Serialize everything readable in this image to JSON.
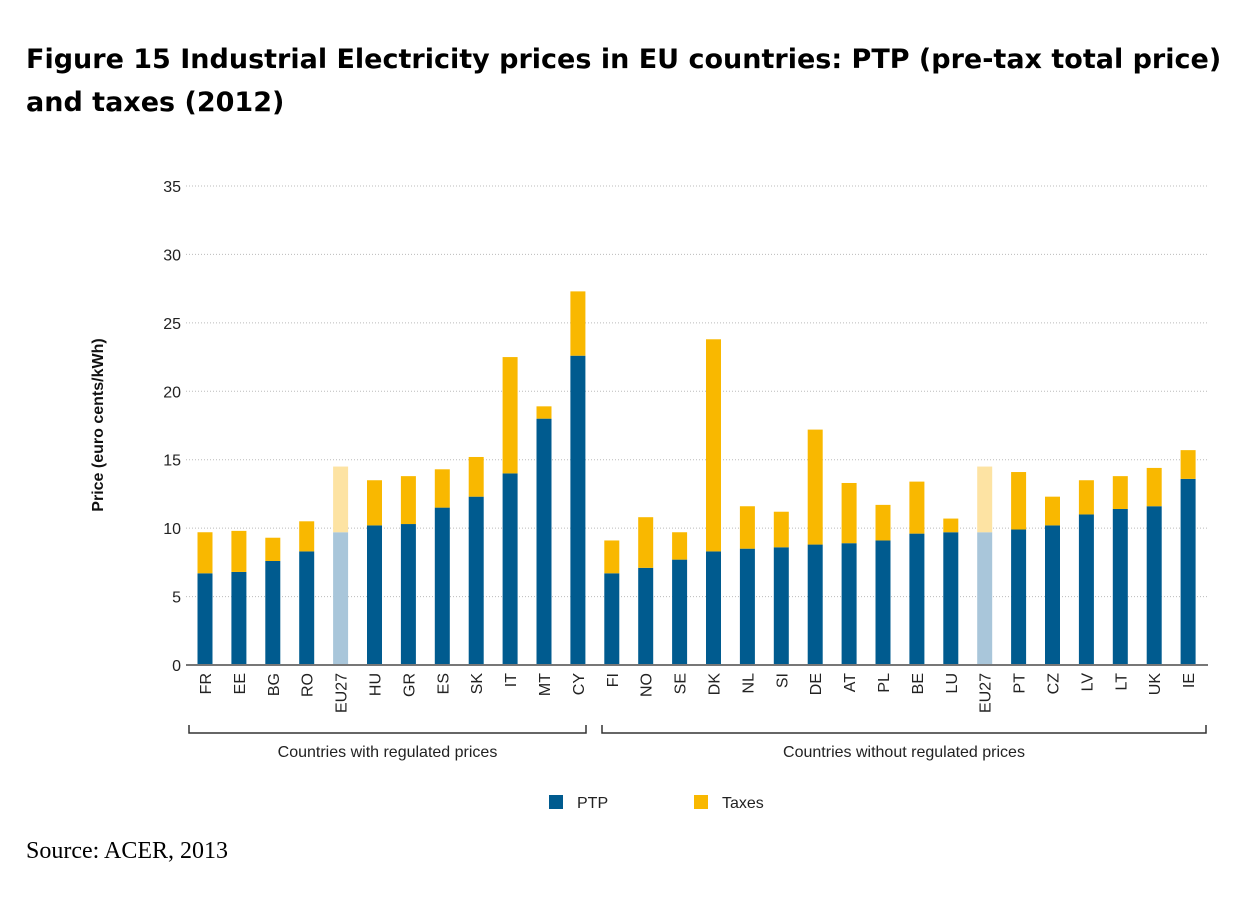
{
  "title": "Figure 15 Industrial Electricity prices in EU countries: PTP (pre-tax total price) and taxes (2012)",
  "source": "Source: ACER, 2013",
  "chart_data": {
    "type": "bar",
    "stacked": true,
    "ylabel": "Price (euro cents/kWh)",
    "ylim": [
      0,
      35
    ],
    "yticks": [
      0,
      5,
      10,
      15,
      20,
      25,
      30,
      35
    ],
    "grid": true,
    "legend_position": "bottom",
    "colors": {
      "PTP": "#005b8f",
      "Taxes": "#f9b800",
      "EU27_PTP": "#a9c6da",
      "EU27_Taxes": "#fde3a3"
    },
    "groups": [
      {
        "label": "Countries with regulated prices",
        "categories": [
          "FR",
          "EE",
          "BG",
          "RO",
          "EU27",
          "HU",
          "GR",
          "ES",
          "SK",
          "IT",
          "MT",
          "CY"
        ]
      },
      {
        "label": "Countries without regulated prices",
        "categories": [
          "FI",
          "NO",
          "SE",
          "DK",
          "NL",
          "SI",
          "DE",
          "AT",
          "PL",
          "BE",
          "LU",
          "EU27",
          "PT",
          "CZ",
          "LV",
          "LT",
          "UK",
          "IE"
        ]
      }
    ],
    "categories": [
      "FR",
      "EE",
      "BG",
      "RO",
      "EU27",
      "HU",
      "GR",
      "ES",
      "SK",
      "IT",
      "MT",
      "CY",
      "FI",
      "NO",
      "SE",
      "DK",
      "NL",
      "SI",
      "DE",
      "AT",
      "PL",
      "BE",
      "LU",
      "EU27",
      "PT",
      "CZ",
      "LV",
      "LT",
      "UK",
      "IE"
    ],
    "series": [
      {
        "name": "PTP",
        "values": [
          6.7,
          6.8,
          7.6,
          8.3,
          9.7,
          10.2,
          10.3,
          11.5,
          12.3,
          14.0,
          18.0,
          22.6,
          6.7,
          7.1,
          7.7,
          8.3,
          8.5,
          8.6,
          8.8,
          8.9,
          9.1,
          9.6,
          9.7,
          9.7,
          9.9,
          10.2,
          11.0,
          11.4,
          11.6,
          13.6
        ]
      },
      {
        "name": "Taxes",
        "values": [
          3.0,
          3.0,
          1.7,
          2.2,
          4.8,
          3.3,
          3.5,
          2.8,
          2.9,
          8.5,
          0.9,
          4.7,
          2.4,
          3.7,
          2.0,
          15.5,
          3.1,
          2.6,
          8.4,
          4.4,
          2.6,
          3.8,
          1.0,
          4.8,
          4.2,
          2.1,
          2.5,
          2.4,
          2.8,
          2.1
        ]
      }
    ]
  }
}
